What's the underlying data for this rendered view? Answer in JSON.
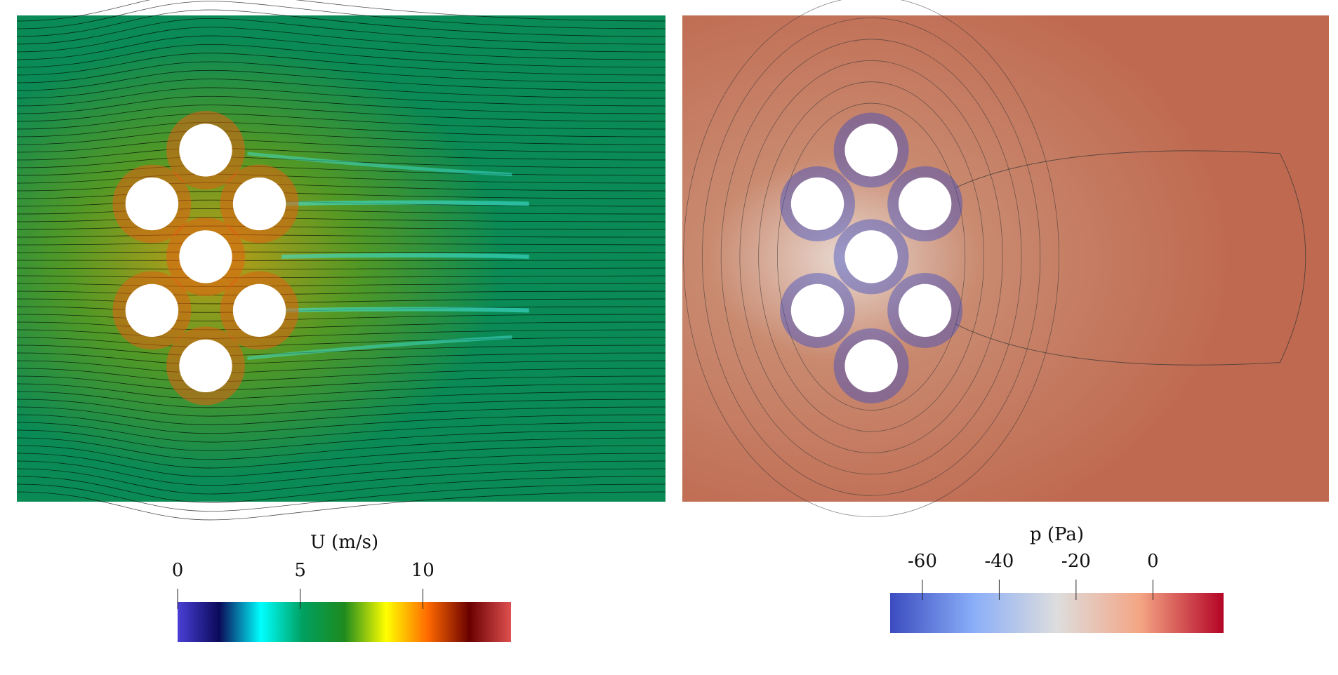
{
  "chart_data": [
    {
      "type": "field",
      "title": "U (m/s)",
      "xlim": [
        0,
        13.6
      ],
      "xticks": [
        0,
        5,
        10
      ],
      "colormap": [
        "#4a3fd6",
        "#0a0a5a",
        "#00ffff",
        "#00a060",
        "#1e8a1e",
        "#ffff00",
        "#ff6a00",
        "#6a0000",
        "#e05050"
      ]
    },
    {
      "type": "field",
      "title": "p (Pa)",
      "xlim": [
        -68.4,
        18.4
      ],
      "xticks": [
        -60,
        -40,
        -20,
        0
      ],
      "colormap": [
        "#3b4cc0",
        "#8aaef8",
        "#dddddd",
        "#f4a584",
        "#b40426"
      ]
    }
  ]
}
